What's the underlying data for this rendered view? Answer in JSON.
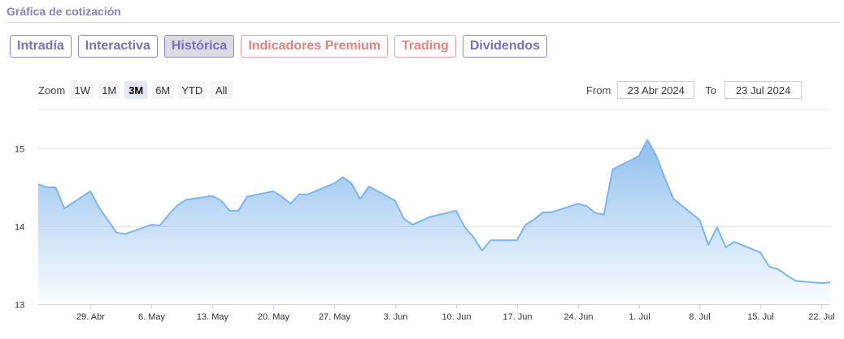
{
  "section_title": "Gráfica de cotización",
  "tabs": [
    {
      "label": "Intradía",
      "style": "purple"
    },
    {
      "label": "Interactiva",
      "style": "purple"
    },
    {
      "label": "Histórica",
      "style": "active"
    },
    {
      "label": "Indicadores Premium",
      "style": "red"
    },
    {
      "label": "Trading",
      "style": "red"
    },
    {
      "label": "Dividendos",
      "style": "purple"
    }
  ],
  "zoom": {
    "label": "Zoom",
    "buttons": [
      "1W",
      "1M",
      "3M",
      "6M",
      "YTD",
      "All"
    ],
    "selected": "3M"
  },
  "range": {
    "from_label": "From",
    "from_value": "23 Abr 2024",
    "to_label": "To",
    "to_value": "23 Jul 2024"
  },
  "colors": {
    "line": "#7cb5ec",
    "area_top": "#7cb5ec",
    "grid": "#e6e6e6",
    "tab_purple": "#7b6fb5",
    "tab_red": "#e08585"
  },
  "chart_data": {
    "type": "area",
    "ylim": [
      13,
      15.5
    ],
    "y_ticks": [
      13,
      14,
      15
    ],
    "x_tick_labels": [
      "29. Abr",
      "6. May",
      "13. May",
      "20. May",
      "27. May",
      "3. Jun",
      "10. Jun",
      "17. Jun",
      "24. Jun",
      "1. Jul",
      "8. Jul",
      "15. Jul",
      "22. Jul"
    ],
    "x_tick_dates": [
      "2024-04-29",
      "2024-05-06",
      "2024-05-13",
      "2024-05-20",
      "2024-05-27",
      "2024-06-03",
      "2024-06-10",
      "2024-06-17",
      "2024-06-24",
      "2024-07-01",
      "2024-07-08",
      "2024-07-15",
      "2024-07-22"
    ],
    "series": [
      {
        "x": [
          "2024-04-23",
          "2024-04-24",
          "2024-04-25",
          "2024-04-26",
          "2024-04-29",
          "2024-04-30",
          "2024-05-02",
          "2024-05-03",
          "2024-05-06",
          "2024-05-07",
          "2024-05-08",
          "2024-05-09",
          "2024-05-10",
          "2024-05-13",
          "2024-05-14",
          "2024-05-15",
          "2024-05-16",
          "2024-05-17",
          "2024-05-20",
          "2024-05-21",
          "2024-05-22",
          "2024-05-23",
          "2024-05-24",
          "2024-05-27",
          "2024-05-28",
          "2024-05-29",
          "2024-05-30",
          "2024-05-31",
          "2024-06-03",
          "2024-06-04",
          "2024-06-05",
          "2024-06-06",
          "2024-06-07",
          "2024-06-10",
          "2024-06-11",
          "2024-06-12",
          "2024-06-13",
          "2024-06-14",
          "2024-06-17",
          "2024-06-18",
          "2024-06-19",
          "2024-06-20",
          "2024-06-21",
          "2024-06-24",
          "2024-06-25",
          "2024-06-26",
          "2024-06-27",
          "2024-06-28",
          "2024-07-01",
          "2024-07-02",
          "2024-07-03",
          "2024-07-04",
          "2024-07-05",
          "2024-07-08",
          "2024-07-09",
          "2024-07-10",
          "2024-07-11",
          "2024-07-12",
          "2024-07-15",
          "2024-07-16",
          "2024-07-17",
          "2024-07-18",
          "2024-07-19",
          "2024-07-22",
          "2024-07-23"
        ],
        "values": [
          14.54,
          14.5,
          14.5,
          14.23,
          14.45,
          14.24,
          13.92,
          13.9,
          14.02,
          14.01,
          14.15,
          14.27,
          14.34,
          14.39,
          14.33,
          14.2,
          14.2,
          14.38,
          14.45,
          14.38,
          14.29,
          14.41,
          14.41,
          14.55,
          14.63,
          14.55,
          14.35,
          14.51,
          14.33,
          14.1,
          14.02,
          14.07,
          14.12,
          14.2,
          13.99,
          13.86,
          13.69,
          13.82,
          13.82,
          14.02,
          14.09,
          14.18,
          14.18,
          14.29,
          14.26,
          14.17,
          14.15,
          14.73,
          14.9,
          15.11,
          14.91,
          14.62,
          14.35,
          14.08,
          13.76,
          13.99,
          13.73,
          13.8,
          13.66,
          13.48,
          13.45,
          13.37,
          13.3,
          13.27,
          13.28
        ]
      }
    ]
  }
}
